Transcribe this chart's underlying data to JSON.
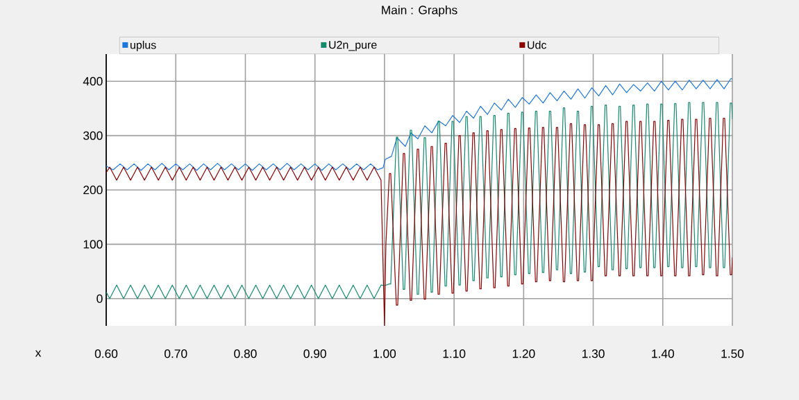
{
  "chart_data": {
    "type": "line",
    "title": "Main : Graphs",
    "xlabel": "x",
    "xlim": [
      0.6,
      1.5
    ],
    "ylim": [
      -50,
      450
    ],
    "xticks": [
      {
        "value": 0.6,
        "label": "0.60"
      },
      {
        "value": 0.7,
        "label": "0.70"
      },
      {
        "value": 0.8,
        "label": "0.80"
      },
      {
        "value": 0.9,
        "label": "0.90"
      },
      {
        "value": 1.0,
        "label": "1.00"
      },
      {
        "value": 1.1,
        "label": "1.10"
      },
      {
        "value": 1.2,
        "label": "1.20"
      },
      {
        "value": 1.3,
        "label": "1.30"
      },
      {
        "value": 1.4,
        "label": "1.40"
      },
      {
        "value": 1.5,
        "label": "1.50"
      }
    ],
    "yticks": [
      0,
      100,
      200,
      300,
      400
    ],
    "grid": true,
    "legend": "top",
    "marker": "none",
    "line_style": "solid",
    "series": [
      {
        "name": "uplus",
        "color": "#1e78dc",
        "x": [
          0.6,
          0.61,
          0.62,
          0.63,
          0.64,
          0.65,
          0.66,
          0.67,
          0.68,
          0.69,
          0.7,
          0.71,
          0.72,
          0.73,
          0.74,
          0.75,
          0.76,
          0.77,
          0.78,
          0.79,
          0.8,
          0.81,
          0.82,
          0.83,
          0.84,
          0.85,
          0.86,
          0.87,
          0.88,
          0.89,
          0.9,
          0.91,
          0.92,
          0.93,
          0.94,
          0.95,
          0.96,
          0.97,
          0.98,
          0.99,
          0.998,
          1.001,
          1.01,
          1.018,
          1.03,
          1.038,
          1.048,
          1.058,
          1.068,
          1.078,
          1.088,
          1.098,
          1.108,
          1.118,
          1.128,
          1.138,
          1.148,
          1.158,
          1.168,
          1.178,
          1.188,
          1.198,
          1.208,
          1.218,
          1.228,
          1.238,
          1.248,
          1.258,
          1.268,
          1.278,
          1.288,
          1.298,
          1.308,
          1.318,
          1.328,
          1.338,
          1.348,
          1.358,
          1.368,
          1.378,
          1.388,
          1.398,
          1.408,
          1.418,
          1.428,
          1.438,
          1.448,
          1.458,
          1.468,
          1.478,
          1.488,
          1.498,
          1.5
        ],
        "values": [
          244,
          237,
          248,
          237,
          248,
          236,
          248,
          237,
          249,
          237,
          248,
          237,
          248,
          236,
          248,
          237,
          249,
          237,
          248,
          237,
          248,
          236,
          248,
          237,
          248,
          237,
          249,
          237,
          248,
          237,
          248,
          236,
          248,
          237,
          248,
          237,
          248,
          237,
          248,
          237,
          241,
          256,
          262,
          296,
          280,
          305,
          294,
          318,
          305,
          327,
          318,
          337,
          324,
          345,
          332,
          354,
          339,
          360,
          347,
          367,
          352,
          370,
          358,
          375,
          360,
          379,
          364,
          382,
          367,
          386,
          369,
          388,
          373,
          392,
          375,
          395,
          379,
          394,
          382,
          397,
          382,
          400,
          384,
          400,
          384,
          402,
          386,
          402,
          386,
          403,
          386,
          405,
          404
        ]
      },
      {
        "name": "U2n_pure",
        "color": "#138a6e",
        "x": [
          0.6,
          0.605,
          0.615,
          0.625,
          0.635,
          0.645,
          0.655,
          0.665,
          0.675,
          0.685,
          0.695,
          0.705,
          0.715,
          0.725,
          0.735,
          0.745,
          0.755,
          0.765,
          0.775,
          0.785,
          0.795,
          0.805,
          0.815,
          0.825,
          0.835,
          0.845,
          0.855,
          0.865,
          0.875,
          0.885,
          0.895,
          0.905,
          0.915,
          0.925,
          0.935,
          0.945,
          0.955,
          0.965,
          0.975,
          0.985,
          0.995,
          1.0,
          1.007,
          1.009,
          1.017,
          1.019,
          1.027,
          1.029,
          1.037,
          1.039,
          1.047,
          1.049,
          1.057,
          1.059,
          1.067,
          1.069,
          1.077,
          1.079,
          1.087,
          1.089,
          1.097,
          1.099,
          1.107,
          1.109,
          1.117,
          1.119,
          1.127,
          1.129,
          1.137,
          1.139,
          1.147,
          1.149,
          1.157,
          1.159,
          1.167,
          1.169,
          1.177,
          1.179,
          1.187,
          1.189,
          1.197,
          1.199,
          1.207,
          1.209,
          1.217,
          1.219,
          1.227,
          1.229,
          1.237,
          1.239,
          1.247,
          1.249,
          1.257,
          1.259,
          1.267,
          1.269,
          1.277,
          1.279,
          1.287,
          1.289,
          1.297,
          1.299,
          1.307,
          1.309,
          1.317,
          1.319,
          1.327,
          1.329,
          1.337,
          1.339,
          1.347,
          1.349,
          1.357,
          1.359,
          1.367,
          1.369,
          1.377,
          1.379,
          1.387,
          1.389,
          1.397,
          1.399,
          1.407,
          1.409,
          1.417,
          1.419,
          1.427,
          1.429,
          1.437,
          1.439,
          1.447,
          1.449,
          1.457,
          1.459,
          1.467,
          1.469,
          1.477,
          1.479,
          1.487,
          1.489,
          1.497,
          1.499,
          1.5
        ],
        "values": [
          12,
          0,
          25,
          0,
          25,
          0,
          25,
          0,
          25,
          0,
          25,
          0,
          25,
          0,
          25,
          0,
          25,
          0,
          25,
          0,
          25,
          0,
          25,
          0,
          25,
          0,
          25,
          0,
          25,
          0,
          25,
          0,
          25,
          0,
          25,
          0,
          25,
          0,
          25,
          0,
          25,
          24,
          27,
          27,
          297,
          297,
          17,
          17,
          310,
          310,
          8,
          8,
          296,
          296,
          12,
          12,
          326,
          326,
          23,
          23,
          326,
          326,
          25,
          25,
          335,
          335,
          33,
          33,
          335,
          335,
          38,
          38,
          337,
          337,
          40,
          40,
          341,
          341,
          44,
          44,
          343,
          343,
          46,
          46,
          345,
          345,
          48,
          48,
          345,
          345,
          53,
          53,
          351,
          351,
          46,
          46,
          345,
          345,
          49,
          49,
          354,
          354,
          59,
          59,
          356,
          356,
          53,
          53,
          354,
          354,
          55,
          55,
          356,
          356,
          57,
          57,
          358,
          358,
          57,
          57,
          358,
          358,
          59,
          59,
          359,
          359,
          57,
          57,
          361,
          361,
          59,
          59,
          361,
          361,
          57,
          57,
          361,
          361,
          57,
          57,
          360,
          360,
          330
        ]
      },
      {
        "name": "Udc",
        "color": "#8b0000",
        "x": [
          0.6,
          0.605,
          0.615,
          0.625,
          0.635,
          0.645,
          0.655,
          0.665,
          0.675,
          0.685,
          0.695,
          0.705,
          0.715,
          0.725,
          0.735,
          0.745,
          0.755,
          0.765,
          0.775,
          0.785,
          0.795,
          0.805,
          0.815,
          0.825,
          0.835,
          0.845,
          0.855,
          0.865,
          0.875,
          0.885,
          0.895,
          0.905,
          0.915,
          0.925,
          0.935,
          0.945,
          0.955,
          0.965,
          0.975,
          0.985,
          0.995,
          1.0,
          1.002,
          1.007,
          1.009,
          1.017,
          1.019,
          1.027,
          1.029,
          1.037,
          1.039,
          1.047,
          1.049,
          1.057,
          1.059,
          1.067,
          1.069,
          1.077,
          1.079,
          1.087,
          1.089,
          1.097,
          1.099,
          1.107,
          1.109,
          1.117,
          1.119,
          1.127,
          1.129,
          1.137,
          1.139,
          1.147,
          1.149,
          1.157,
          1.159,
          1.167,
          1.169,
          1.177,
          1.179,
          1.187,
          1.189,
          1.197,
          1.199,
          1.207,
          1.209,
          1.217,
          1.219,
          1.227,
          1.229,
          1.237,
          1.239,
          1.247,
          1.249,
          1.257,
          1.259,
          1.267,
          1.269,
          1.277,
          1.279,
          1.287,
          1.289,
          1.297,
          1.299,
          1.307,
          1.309,
          1.317,
          1.319,
          1.327,
          1.329,
          1.337,
          1.339,
          1.347,
          1.349,
          1.357,
          1.359,
          1.367,
          1.369,
          1.377,
          1.379,
          1.387,
          1.389,
          1.397,
          1.399,
          1.407,
          1.409,
          1.417,
          1.419,
          1.427,
          1.429,
          1.437,
          1.439,
          1.447,
          1.449,
          1.457,
          1.459,
          1.467,
          1.469,
          1.477,
          1.479,
          1.487,
          1.489,
          1.497,
          1.499,
          1.5
        ],
        "values": [
          232,
          242,
          218,
          242,
          218,
          242,
          218,
          242,
          218,
          242,
          218,
          242,
          218,
          242,
          218,
          242,
          218,
          242,
          218,
          242,
          218,
          242,
          218,
          242,
          218,
          242,
          218,
          242,
          218,
          242,
          218,
          242,
          218,
          242,
          218,
          242,
          218,
          242,
          218,
          242,
          218,
          -50,
          100,
          230,
          230,
          -12,
          -12,
          267,
          267,
          -3,
          -3,
          275,
          275,
          -1,
          -1,
          280,
          280,
          8,
          8,
          286,
          286,
          10,
          10,
          300,
          300,
          14,
          14,
          305,
          305,
          18,
          18,
          309,
          309,
          20,
          20,
          311,
          311,
          23,
          23,
          313,
          313,
          27,
          27,
          314,
          314,
          31,
          31,
          315,
          315,
          33,
          33,
          315,
          315,
          31,
          31,
          322,
          322,
          33,
          33,
          320,
          320,
          33,
          33,
          320,
          320,
          42,
          42,
          322,
          322,
          42,
          42,
          326,
          326,
          42,
          42,
          326,
          326,
          42,
          42,
          326,
          326,
          42,
          42,
          328,
          328,
          42,
          42,
          330,
          330,
          42,
          42,
          330,
          330,
          44,
          44,
          332,
          332,
          42,
          42,
          332,
          332,
          44,
          44,
          76
        ]
      }
    ]
  }
}
